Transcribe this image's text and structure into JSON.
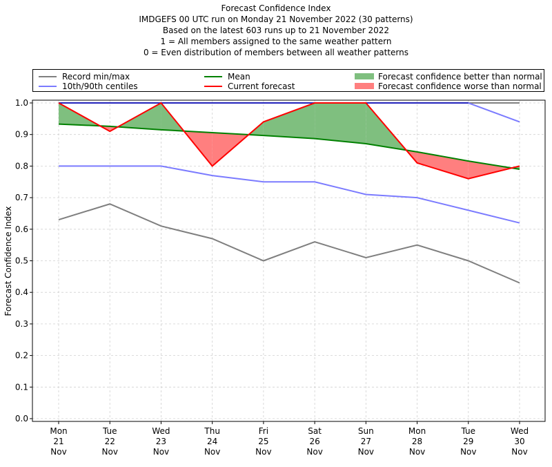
{
  "chart_data": {
    "type": "line",
    "title": "Forecast Confidence Index",
    "subtitle_lines": [
      "IMDGEFS 00 UTC run on Monday 21 November 2022 (30 patterns)",
      "Based on the latest 603 runs up to 21 November 2022",
      "1 = All members assigned to the same weather pattern",
      "0 = Even distribution of members between all weather patterns"
    ],
    "xlabel": "",
    "ylabel": "Forecast Confidence Index",
    "ylim": [
      0.0,
      1.0
    ],
    "yticks": [
      "0.0",
      "0.1",
      "0.2",
      "0.3",
      "0.4",
      "0.5",
      "0.6",
      "0.7",
      "0.8",
      "0.9",
      "1.0"
    ],
    "grid": true,
    "legend_position": "top (above plot, 3 columns)",
    "categories": [
      [
        "Mon",
        "21",
        "Nov"
      ],
      [
        "Tue",
        "22",
        "Nov"
      ],
      [
        "Wed",
        "23",
        "Nov"
      ],
      [
        "Thu",
        "24",
        "Nov"
      ],
      [
        "Fri",
        "25",
        "Nov"
      ],
      [
        "Sat",
        "26",
        "Nov"
      ],
      [
        "Sun",
        "27",
        "Nov"
      ],
      [
        "Mon",
        "28",
        "Nov"
      ],
      [
        "Tue",
        "29",
        "Nov"
      ],
      [
        "Wed",
        "30",
        "Nov"
      ]
    ],
    "series": [
      {
        "name": "Record min/max",
        "key": "record_min",
        "color": "#7f7f7f",
        "values": [
          0.63,
          0.68,
          0.61,
          0.57,
          0.5,
          0.56,
          0.51,
          0.55,
          0.5,
          0.43
        ]
      },
      {
        "name": "Record max",
        "key": "record_max",
        "color": "#7f7f7f",
        "values": [
          1.0,
          1.0,
          1.0,
          1.0,
          1.0,
          1.0,
          1.0,
          1.0,
          1.0,
          1.0
        ]
      },
      {
        "name": "10th/90th centiles",
        "key": "p10",
        "color": "#7b7bff",
        "values": [
          0.8,
          0.8,
          0.8,
          0.77,
          0.75,
          0.75,
          0.71,
          0.7,
          0.66,
          0.62
        ]
      },
      {
        "name": "90th centile",
        "key": "p90",
        "color": "#7b7bff",
        "values": [
          1.0,
          1.0,
          1.0,
          1.0,
          1.0,
          1.0,
          1.0,
          1.0,
          1.0,
          0.94
        ]
      },
      {
        "name": "Mean",
        "key": "mean",
        "color": "#008000",
        "values": [
          0.933,
          0.926,
          0.915,
          0.906,
          0.897,
          0.887,
          0.871,
          0.845,
          0.816,
          0.79
        ]
      },
      {
        "name": "Current forecast",
        "key": "current",
        "color": "#ff0000",
        "values": [
          1.0,
          0.91,
          1.0,
          0.8,
          0.94,
          1.0,
          1.0,
          0.81,
          0.76,
          0.8
        ]
      }
    ],
    "fills": [
      {
        "name": "Forecast confidence better than normal",
        "color": "#7fbf7f",
        "condition": "current > mean"
      },
      {
        "name": "Forecast confidence worse than normal",
        "color": "#ff7f7f",
        "condition": "current < mean"
      }
    ]
  },
  "legend": {
    "items": [
      {
        "label": "Record min/max",
        "type": "line",
        "color": "#7f7f7f"
      },
      {
        "label": "10th/90th centiles",
        "type": "line",
        "color": "#7b7bff"
      },
      {
        "label": "Mean",
        "type": "line",
        "color": "#008000"
      },
      {
        "label": "Current forecast",
        "type": "line",
        "color": "#ff0000"
      },
      {
        "label": "Forecast confidence better than normal",
        "type": "patch",
        "color": "#7fbf7f"
      },
      {
        "label": "Forecast confidence worse than normal",
        "type": "patch",
        "color": "#ff7f7f"
      }
    ]
  }
}
